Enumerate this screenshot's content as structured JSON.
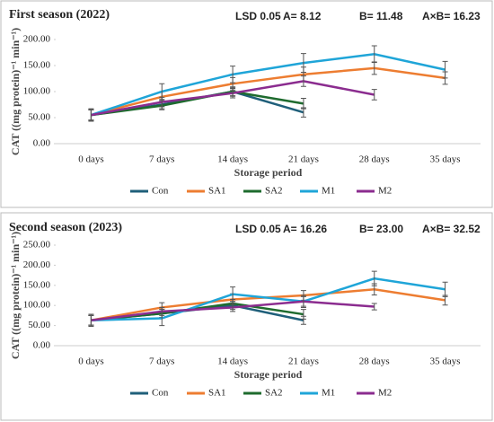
{
  "chart_data": [
    {
      "type": "line",
      "title": "First season (2022)",
      "lsd_label": "LSD 0.05",
      "annotations": [
        "A=  8.12",
        "B=  11.48",
        "A×B= 16.23"
      ],
      "x_label": "Storage period",
      "y_label": "CAT  ((mg protein)⁻¹ min⁻¹)",
      "categories": [
        "0 days",
        "7 days",
        "14 days",
        "21 days",
        "28 days",
        "35 days"
      ],
      "ylim": [
        0,
        200
      ],
      "yticks": [
        {
          "value": 0,
          "label": "0.00"
        },
        {
          "value": 50,
          "label": "50.00"
        },
        {
          "value": 100,
          "label": "100.00"
        },
        {
          "value": 150,
          "label": "150.00"
        },
        {
          "value": 200,
          "label": "200.00"
        }
      ],
      "grid": false,
      "legend": "bottom",
      "series": [
        {
          "name": "Con",
          "color": "#1f5f7a",
          "values": [
            55,
            75,
            100,
            60,
            null,
            null
          ],
          "errors": [
            10,
            8,
            8,
            9,
            null,
            null
          ]
        },
        {
          "name": "SA1",
          "color": "#ed7d31",
          "values": [
            55,
            90,
            115,
            133,
            145,
            126
          ],
          "errors": [
            10,
            10,
            12,
            14,
            12,
            12
          ]
        },
        {
          "name": "SA2",
          "color": "#1e6b2e",
          "values": [
            55,
            73,
            100,
            77,
            null,
            null
          ],
          "errors": [
            10,
            8,
            9,
            10,
            null,
            null
          ]
        },
        {
          "name": "M1",
          "color": "#1fa5d8",
          "values": [
            55,
            100,
            133,
            155,
            172,
            142
          ],
          "errors": [
            12,
            15,
            16,
            18,
            16,
            16
          ]
        },
        {
          "name": "M2",
          "color": "#8b2c8f",
          "values": [
            55,
            80,
            97,
            120,
            94,
            null
          ],
          "errors": [
            10,
            9,
            9,
            10,
            10,
            null
          ]
        }
      ]
    },
    {
      "type": "line",
      "title": "Second season (2023)",
      "lsd_label": "LSD 0.05",
      "annotations": [
        "A=   16.26",
        "B=  23.00",
        "A×B= 32.52"
      ],
      "x_label": "Storage period",
      "y_label": "CAT  ((mg protein)⁻¹ min⁻¹)",
      "categories": [
        "0 days",
        "7 days",
        "14 days",
        "21 days",
        "28 days",
        "35 days"
      ],
      "ylim": [
        0,
        250
      ],
      "yticks": [
        {
          "value": 0,
          "label": "0.00"
        },
        {
          "value": 50,
          "label": "50.00"
        },
        {
          "value": 100,
          "label": "100.00"
        },
        {
          "value": 150,
          "label": "150.00"
        },
        {
          "value": 200,
          "label": "200.00"
        },
        {
          "value": 250,
          "label": "250.00"
        }
      ],
      "grid": false,
      "legend": "bottom",
      "series": [
        {
          "name": "Con",
          "color": "#1f5f7a",
          "values": [
            63,
            80,
            100,
            63,
            null,
            null
          ],
          "errors": [
            12,
            10,
            10,
            10,
            null,
            null
          ]
        },
        {
          "name": "SA1",
          "color": "#ed7d31",
          "values": [
            63,
            95,
            115,
            125,
            140,
            113
          ],
          "errors": [
            12,
            12,
            14,
            12,
            14,
            12
          ]
        },
        {
          "name": "SA2",
          "color": "#1e6b2e",
          "values": [
            63,
            80,
            105,
            78,
            null,
            null
          ],
          "errors": [
            12,
            10,
            10,
            12,
            null,
            null
          ]
        },
        {
          "name": "M1",
          "color": "#1fa5d8",
          "values": [
            63,
            68,
            128,
            110,
            167,
            140
          ],
          "errors": [
            15,
            18,
            18,
            15,
            18,
            18
          ]
        },
        {
          "name": "M2",
          "color": "#8b2c8f",
          "values": [
            63,
            85,
            95,
            110,
            97,
            null
          ],
          "errors": [
            12,
            10,
            10,
            12,
            8,
            null
          ]
        }
      ]
    }
  ]
}
